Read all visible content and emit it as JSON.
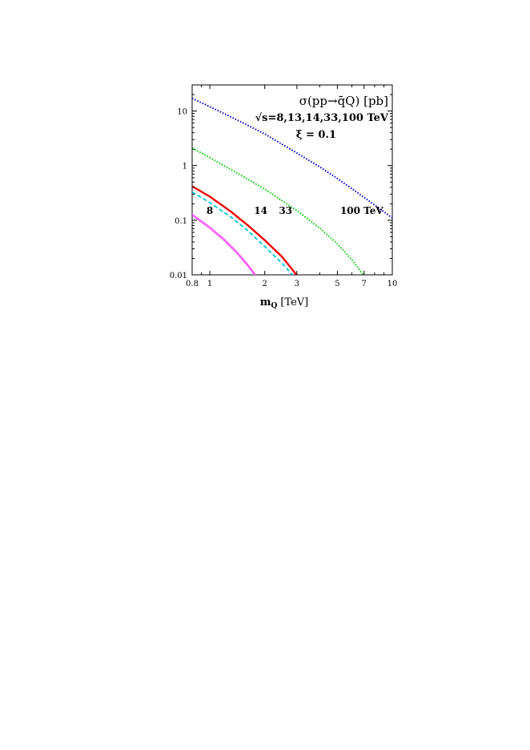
{
  "chart_data": {
    "type": "line",
    "title": "σ(pp→q̄Q) [pb]",
    "subtitle_lines": [
      "√s=8,13,14,33,100  TeV",
      "ξ = 0.1"
    ],
    "xlabel": "m_Q [TeV]",
    "xlabel_main": "m",
    "xlabel_sub": "Q",
    "xlabel_unit": "[TeV]",
    "ylabel": "",
    "x_scale": "log",
    "y_scale": "log",
    "xlim": [
      0.8,
      10
    ],
    "ylim": [
      0.01,
      30
    ],
    "x_ticks": [
      {
        "value": 0.8,
        "label": "0.8"
      },
      {
        "value": 1,
        "label": "1"
      },
      {
        "value": 2,
        "label": "2"
      },
      {
        "value": 3,
        "label": "3"
      },
      {
        "value": 5,
        "label": "5"
      },
      {
        "value": 7,
        "label": "7"
      },
      {
        "value": 10,
        "label": "10"
      }
    ],
    "y_ticks": [
      {
        "value": 0.01,
        "label": "0.01"
      },
      {
        "value": 0.1,
        "label": "0.1"
      },
      {
        "value": 1,
        "label": "1"
      },
      {
        "value": 10,
        "label": "10"
      }
    ],
    "grid": false,
    "series": [
      {
        "id": "s8",
        "color": "#ff44ff",
        "style": "solid",
        "width": 1.3,
        "x": [
          0.8,
          1.0,
          1.2,
          1.4,
          1.6,
          1.8
        ],
        "y": [
          0.13,
          0.075,
          0.045,
          0.027,
          0.016,
          0.0095
        ]
      },
      {
        "id": "s13",
        "color": "#ff44ff",
        "style": "solid",
        "width": 1.0,
        "x": [
          0.8,
          1.0,
          1.2,
          1.4,
          1.6,
          1.8
        ],
        "y": [
          0.122,
          0.07,
          0.042,
          0.025,
          0.015,
          0.009
        ]
      },
      {
        "id": "s14",
        "color": "#ee0000",
        "style": "solid",
        "width": 2.4,
        "x": [
          0.8,
          1.0,
          1.3,
          1.6,
          2.0,
          2.5,
          3.0
        ],
        "y": [
          0.42,
          0.27,
          0.145,
          0.083,
          0.043,
          0.021,
          0.0098
        ]
      },
      {
        "id": "s33",
        "color": "#00c8e0",
        "style": "dashed",
        "width": 1.8,
        "x": [
          0.8,
          1.0,
          1.3,
          1.6,
          2.0,
          2.5,
          2.85
        ],
        "y": [
          0.33,
          0.21,
          0.115,
          0.066,
          0.033,
          0.016,
          0.0098
        ]
      },
      {
        "id": "s100green",
        "color": "#00cc00",
        "style": "dotted",
        "width": 2.0,
        "x": [
          0.8,
          1.0,
          1.5,
          2.0,
          3.0,
          4.0,
          5.0,
          6.0,
          7.0
        ],
        "y": [
          2.1,
          1.4,
          0.65,
          0.37,
          0.15,
          0.072,
          0.037,
          0.019,
          0.0095
        ]
      },
      {
        "id": "s100blue",
        "color": "#0000cc",
        "style": "dotted",
        "width": 2.0,
        "x": [
          0.8,
          1.0,
          1.5,
          2.0,
          3.0,
          4.0,
          5.0,
          6.0,
          8.0,
          10.0
        ],
        "y": [
          17,
          12,
          6.2,
          3.8,
          1.7,
          0.95,
          0.58,
          0.38,
          0.19,
          0.11
        ]
      }
    ],
    "annotations": [
      {
        "text": "8",
        "x": 1.0,
        "y": 0.1
      },
      {
        "text": "14",
        "x": 1.9,
        "y": 0.1
      },
      {
        "text": "33",
        "x": 2.6,
        "y": 0.1
      },
      {
        "text": "100 TeV",
        "x": 6.8,
        "y": 0.1
      }
    ]
  }
}
